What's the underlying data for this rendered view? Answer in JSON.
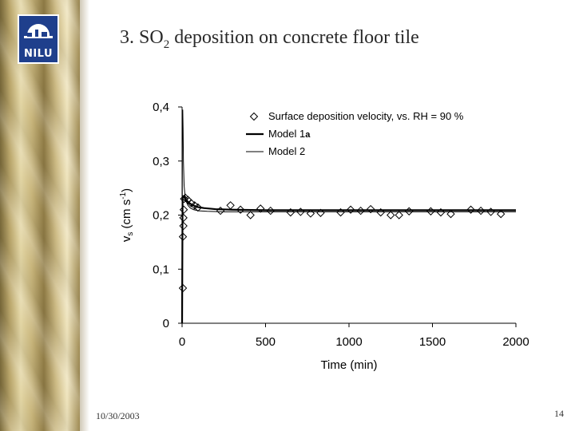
{
  "slide": {
    "title_prefix": "3. SO",
    "title_sub": "2",
    "title_suffix": " deposition on concrete floor tile",
    "date": "10/30/2003",
    "page_number": "14",
    "logo_text": "NILU"
  },
  "colors": {
    "logo_bg": "#1f3f8c",
    "gold": "#c8b57b"
  },
  "chart_data": {
    "type": "scatter",
    "xlabel": "Time (min)",
    "ylabel_main": "v",
    "ylabel_sub": "s",
    "ylabel_unit": " (cm s",
    "ylabel_sup": "-1",
    "ylabel_close": ")",
    "xlim": [
      0,
      2000
    ],
    "ylim": [
      0,
      0.4
    ],
    "x_ticks": [
      0,
      500,
      1000,
      1500,
      2000
    ],
    "x_tick_labels": [
      "0",
      "500",
      "1000",
      "1500",
      "2000"
    ],
    "y_ticks": [
      0,
      0.1,
      0.2,
      0.3,
      0.4
    ],
    "y_tick_labels": [
      "0",
      "0,1",
      "0,2",
      "0,3",
      "0,4"
    ],
    "grid": false,
    "legend_position": "top-right",
    "legend": [
      {
        "label": "Surface deposition velocity, vs. RH = 90 %",
        "marker": "diamond"
      },
      {
        "label": "Model 1",
        "suffix": "a",
        "line": "thick"
      },
      {
        "label": "Model 2",
        "line": "thin"
      }
    ],
    "series": [
      {
        "name": "Surface deposition velocity, vs. RH = 90 %",
        "kind": "markers",
        "x": [
          5,
          5,
          8,
          8,
          10,
          12,
          20,
          35,
          55,
          75,
          95,
          230,
          290,
          350,
          410,
          470,
          530,
          650,
          710,
          770,
          830,
          950,
          1010,
          1070,
          1130,
          1190,
          1250,
          1300,
          1360,
          1490,
          1550,
          1610,
          1730,
          1790,
          1850,
          1910
        ],
        "y": [
          0.065,
          0.16,
          0.18,
          0.195,
          0.21,
          0.23,
          0.232,
          0.228,
          0.222,
          0.218,
          0.214,
          0.208,
          0.218,
          0.21,
          0.2,
          0.212,
          0.208,
          0.205,
          0.206,
          0.203,
          0.204,
          0.205,
          0.21,
          0.208,
          0.211,
          0.205,
          0.2,
          0.2,
          0.207,
          0.207,
          0.205,
          0.202,
          0.21,
          0.208,
          0.206,
          0.202
        ]
      },
      {
        "name": "Model 1",
        "kind": "thick-line",
        "x": [
          0,
          3,
          8,
          15,
          25,
          40,
          60,
          90,
          130,
          200,
          300,
          500,
          800,
          1200,
          1600,
          2000
        ],
        "y": [
          0.0,
          0.235,
          0.235,
          0.232,
          0.228,
          0.223,
          0.219,
          0.215,
          0.213,
          0.211,
          0.21,
          0.209,
          0.209,
          0.209,
          0.209,
          0.209
        ]
      },
      {
        "name": "Model 2",
        "kind": "thin-line",
        "x": [
          0,
          2,
          4,
          6,
          8,
          12,
          18,
          25,
          35,
          50,
          70,
          100,
          150,
          250,
          400,
          700,
          1200,
          2000
        ],
        "y": [
          0.0,
          0.38,
          0.395,
          0.36,
          0.3,
          0.255,
          0.235,
          0.225,
          0.218,
          0.213,
          0.21,
          0.208,
          0.207,
          0.206,
          0.206,
          0.206,
          0.206,
          0.206
        ]
      }
    ]
  }
}
